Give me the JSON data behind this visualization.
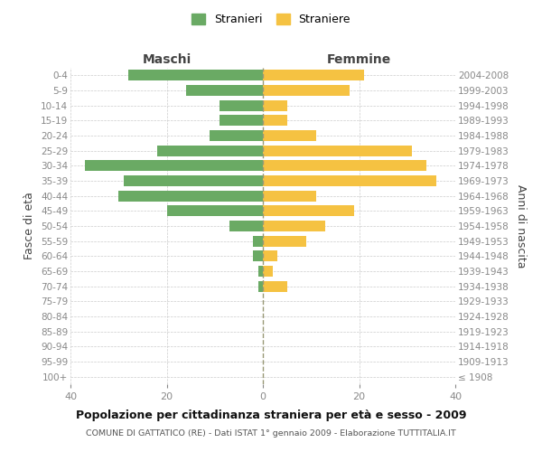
{
  "age_groups": [
    "100+",
    "95-99",
    "90-94",
    "85-89",
    "80-84",
    "75-79",
    "70-74",
    "65-69",
    "60-64",
    "55-59",
    "50-54",
    "45-49",
    "40-44",
    "35-39",
    "30-34",
    "25-29",
    "20-24",
    "15-19",
    "10-14",
    "5-9",
    "0-4"
  ],
  "birth_years": [
    "≤ 1908",
    "1909-1913",
    "1914-1918",
    "1919-1923",
    "1924-1928",
    "1929-1933",
    "1934-1938",
    "1939-1943",
    "1944-1948",
    "1949-1953",
    "1954-1958",
    "1959-1963",
    "1964-1968",
    "1969-1973",
    "1974-1978",
    "1979-1983",
    "1984-1988",
    "1989-1993",
    "1994-1998",
    "1999-2003",
    "2004-2008"
  ],
  "maschi": [
    0,
    0,
    0,
    0,
    0,
    0,
    1,
    1,
    2,
    2,
    7,
    20,
    30,
    29,
    37,
    22,
    11,
    9,
    9,
    16,
    28
  ],
  "femmine": [
    0,
    0,
    0,
    0,
    0,
    0,
    5,
    2,
    3,
    9,
    13,
    19,
    11,
    36,
    34,
    31,
    11,
    5,
    5,
    18,
    21
  ],
  "color_maschi": "#6aaa64",
  "color_femmine": "#f5c242",
  "title": "Popolazione per cittadinanza straniera per età e sesso - 2009",
  "subtitle": "COMUNE DI GATTATICO (RE) - Dati ISTAT 1° gennaio 2009 - Elaborazione TUTTITALIA.IT",
  "label_maschi": "Stranieri",
  "label_femmine": "Straniere",
  "header_left": "Maschi",
  "header_right": "Femmine",
  "ylabel_left": "Fasce di età",
  "ylabel_right": "Anni di nascita",
  "xlim": 40,
  "bg_color": "#ffffff",
  "grid_color": "#cccccc",
  "tick_color": "#888888",
  "label_color": "#444444"
}
